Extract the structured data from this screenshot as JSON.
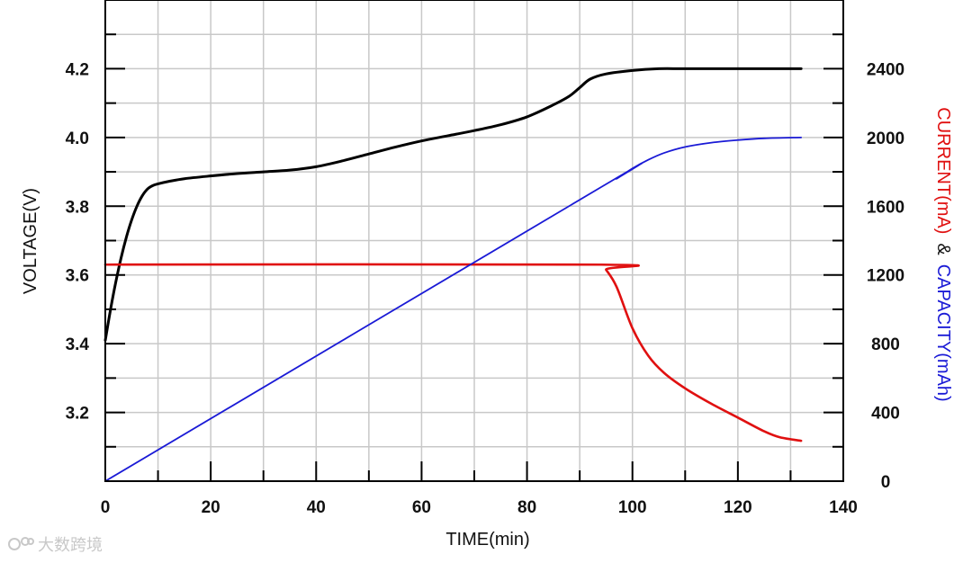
{
  "chart_data": {
    "type": "line",
    "xlabel": "TIME(min)",
    "ylabel_left": "VOLTAGE(V)",
    "ylabel_right": {
      "part1": "CURRENT(mA)",
      "amp": "&",
      "part2": "CAPACITY(mAh)"
    },
    "xlim": [
      0,
      140
    ],
    "x_ticks": [
      "0",
      "20",
      "40",
      "60",
      "80",
      "100",
      "120",
      "140"
    ],
    "ylim_left": [
      3.0,
      4.4
    ],
    "y_left_ticks": [
      "3.2",
      "3.4",
      "3.6",
      "3.8",
      "4.0",
      "4.2"
    ],
    "ylim_right": [
      0,
      2800
    ],
    "y_right_ticks": [
      "0",
      "400",
      "800",
      "1200",
      "1600",
      "2000",
      "2400"
    ],
    "grid": true,
    "series": [
      {
        "color": "#000000",
        "axis": "left",
        "x": [
          0,
          1,
          2,
          3,
          4,
          5,
          6,
          7,
          8,
          9,
          10,
          12,
          15,
          20,
          25,
          30,
          35,
          40,
          45,
          50,
          55,
          60,
          65,
          70,
          75,
          80,
          85,
          88,
          90,
          92,
          95,
          100,
          105,
          110,
          120,
          132
        ],
        "y": [
          3.41,
          3.5,
          3.58,
          3.65,
          3.71,
          3.76,
          3.8,
          3.83,
          3.85,
          3.86,
          3.865,
          3.872,
          3.88,
          3.888,
          3.895,
          3.9,
          3.905,
          3.915,
          3.932,
          3.952,
          3.972,
          3.99,
          4.005,
          4.02,
          4.037,
          4.06,
          4.095,
          4.12,
          4.145,
          4.17,
          4.185,
          4.195,
          4.2,
          4.2,
          4.2,
          4.2
        ]
      },
      {
        "color": "#e01010",
        "axis": "right",
        "x": [
          0,
          94,
          95,
          97,
          100,
          103,
          106,
          110,
          115,
          120,
          125,
          128,
          132
        ],
        "y": [
          1260,
          1260,
          1230,
          1130,
          890,
          730,
          630,
          540,
          450,
          370,
          290,
          255,
          235
        ]
      },
      {
        "color": "#1a1ad6",
        "axis": "right",
        "x": [
          0,
          94,
          97,
          100,
          103,
          106,
          110,
          115,
          120,
          125,
          132
        ],
        "y": [
          0,
          1710,
          1760,
          1820,
          1870,
          1910,
          1945,
          1970,
          1985,
          1995,
          2000
        ]
      }
    ]
  },
  "watermark": {
    "text": "大数跨境"
  }
}
